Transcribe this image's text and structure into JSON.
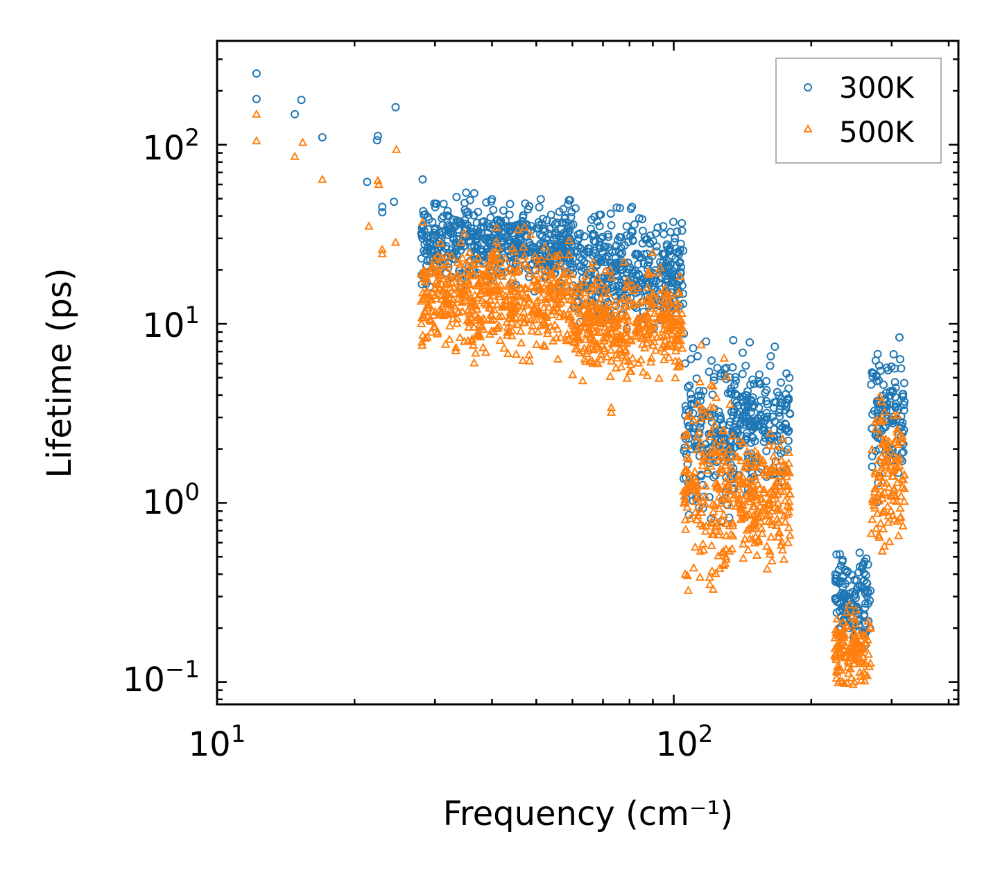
{
  "chart_data": {
    "type": "scatter",
    "title": "",
    "xlabel": "Frequency (cm⁻¹)",
    "ylabel": "Lifetime (ps)",
    "xscale": "log",
    "yscale": "log",
    "xlim": [
      10,
      420
    ],
    "ylim": [
      0.075,
      380
    ],
    "xticks": [
      {
        "value": 10,
        "base": "10",
        "exp": "1"
      },
      {
        "value": 100,
        "base": "10",
        "exp": "2"
      }
    ],
    "yticks": [
      {
        "value": 0.1,
        "base": "10",
        "exp": "−1"
      },
      {
        "value": 1,
        "base": "10",
        "exp": "0"
      },
      {
        "value": 10,
        "base": "10",
        "exp": "1"
      },
      {
        "value": 100,
        "base": "10",
        "exp": "2"
      }
    ],
    "legend_position": "top-right",
    "series": [
      {
        "name": "300K",
        "marker": "circle",
        "color": "#1f77b4",
        "point_count": 1600,
        "listed_points": [
          [
            12.2,
            250
          ],
          [
            12.2,
            180
          ],
          [
            14.8,
            148
          ],
          [
            15.3,
            178
          ],
          [
            17,
            110
          ],
          [
            21.3,
            62
          ],
          [
            22.4,
            106
          ],
          [
            22.5,
            112
          ],
          [
            23,
            45
          ],
          [
            23,
            42
          ],
          [
            24.4,
            48
          ],
          [
            24.6,
            162
          ],
          [
            28.2,
            64
          ],
          [
            29.6,
            37
          ],
          [
            29.9,
            47
          ],
          [
            33.6,
            37
          ],
          [
            35.1,
            54
          ],
          [
            47.3,
            47
          ],
          [
            59.3,
            49
          ],
          [
            81,
            45
          ],
          [
            135,
            8.1
          ],
          [
            178,
            2.5
          ]
        ],
        "clusters": [
          {
            "x_range": [
              28,
              60
            ],
            "y_center": 28,
            "y_spread": 1.5
          },
          {
            "x_range": [
              60,
              105
            ],
            "y_center": 20,
            "y_spread": 1.7
          },
          {
            "x_range": [
              105,
              135
            ],
            "y_center": 2.5,
            "y_spread": 2.5
          },
          {
            "x_range": [
              135,
              180
            ],
            "y_center": 2.8,
            "y_spread": 1.8
          },
          {
            "x_range": [
              225,
              270
            ],
            "y_center": 0.3,
            "y_spread": 1.6
          },
          {
            "x_range": [
              270,
              320
            ],
            "y_center": 3.0,
            "y_spread": 2.0
          }
        ]
      },
      {
        "name": "500K",
        "marker": "triangle",
        "color": "#ff7f0e",
        "point_count": 1600,
        "listed_points": [
          [
            12.2,
            148
          ],
          [
            12.2,
            105
          ],
          [
            14.8,
            86
          ],
          [
            15.4,
            103
          ],
          [
            17,
            64
          ],
          [
            21.5,
            35
          ],
          [
            22.5,
            63
          ],
          [
            22.6,
            60
          ],
          [
            23,
            26
          ],
          [
            23,
            24.6
          ],
          [
            24.6,
            28.5
          ],
          [
            24.7,
            94
          ],
          [
            28.2,
            37
          ],
          [
            29.6,
            21
          ],
          [
            34.8,
            32
          ],
          [
            48.3,
            6.2
          ],
          [
            73,
            3.4
          ],
          [
            73,
            3.2
          ],
          [
            120,
            0.35
          ],
          [
            178,
            0.6
          ]
        ],
        "clusters": [
          {
            "x_range": [
              28,
              60
            ],
            "y_center": 14,
            "y_spread": 1.7
          },
          {
            "x_range": [
              60,
              105
            ],
            "y_center": 10,
            "y_spread": 1.7
          },
          {
            "x_range": [
              105,
              135
            ],
            "y_center": 1.2,
            "y_spread": 2.8
          },
          {
            "x_range": [
              135,
              180
            ],
            "y_center": 1.1,
            "y_spread": 1.8
          },
          {
            "x_range": [
              225,
              270
            ],
            "y_center": 0.15,
            "y_spread": 1.5
          },
          {
            "x_range": [
              270,
              320
            ],
            "y_center": 1.4,
            "y_spread": 2.0
          }
        ]
      }
    ]
  }
}
